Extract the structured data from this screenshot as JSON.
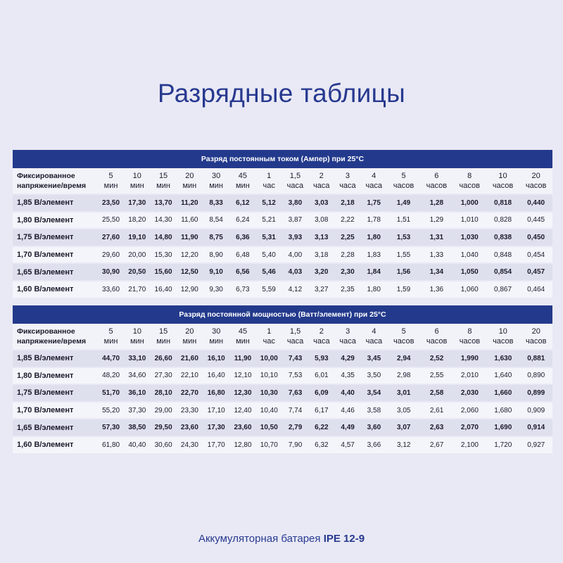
{
  "title": "Разрядные таблицы",
  "label_header": [
    "Фиксированное",
    "напряжение/время"
  ],
  "columns": [
    [
      "5",
      "мин"
    ],
    [
      "10",
      "мин"
    ],
    [
      "15",
      "мин"
    ],
    [
      "20",
      "мин"
    ],
    [
      "30",
      "мин"
    ],
    [
      "45",
      "мин"
    ],
    [
      "1",
      "час"
    ],
    [
      "1,5",
      "часа"
    ],
    [
      "2",
      "часа"
    ],
    [
      "3",
      "часа"
    ],
    [
      "4",
      "часа"
    ],
    [
      "5",
      "часов"
    ],
    [
      "6",
      "часов"
    ],
    [
      "8",
      "часов"
    ],
    [
      "10",
      "часов"
    ],
    [
      "20",
      "часов"
    ]
  ],
  "tables": [
    {
      "caption": "Разряд постоянным током (Ампер) при 25°C",
      "rows": [
        {
          "label": "1,85 В/элемент",
          "values": [
            "23,50",
            "17,30",
            "13,70",
            "11,20",
            "8,33",
            "6,12",
            "5,12",
            "3,80",
            "3,03",
            "2,18",
            "1,75",
            "1,49",
            "1,28",
            "1,000",
            "0,818",
            "0,440"
          ]
        },
        {
          "label": "1,80 В/элемент",
          "values": [
            "25,50",
            "18,20",
            "14,30",
            "11,60",
            "8,54",
            "6,24",
            "5,21",
            "3,87",
            "3,08",
            "2,22",
            "1,78",
            "1,51",
            "1,29",
            "1,010",
            "0,828",
            "0,445"
          ]
        },
        {
          "label": "1,75 В/элемент",
          "values": [
            "27,60",
            "19,10",
            "14,80",
            "11,90",
            "8,75",
            "6,36",
            "5,31",
            "3,93",
            "3,13",
            "2,25",
            "1,80",
            "1,53",
            "1,31",
            "1,030",
            "0,838",
            "0,450"
          ]
        },
        {
          "label": "1,70 В/элемент",
          "values": [
            "29,60",
            "20,00",
            "15,30",
            "12,20",
            "8,90",
            "6,48",
            "5,40",
            "4,00",
            "3,18",
            "2,28",
            "1,83",
            "1,55",
            "1,33",
            "1,040",
            "0,848",
            "0,454"
          ]
        },
        {
          "label": "1,65 В/элемент",
          "values": [
            "30,90",
            "20,50",
            "15,60",
            "12,50",
            "9,10",
            "6,56",
            "5,46",
            "4,03",
            "3,20",
            "2,30",
            "1,84",
            "1,56",
            "1,34",
            "1,050",
            "0,854",
            "0,457"
          ]
        },
        {
          "label": "1,60 В/элемент",
          "values": [
            "33,60",
            "21,70",
            "16,40",
            "12,90",
            "9,30",
            "6,73",
            "5,59",
            "4,12",
            "3,27",
            "2,35",
            "1,80",
            "1,59",
            "1,36",
            "1,060",
            "0,867",
            "0,464"
          ]
        }
      ]
    },
    {
      "caption": "Разряд постоянной мощностью (Ватт/элемент) при 25°C",
      "rows": [
        {
          "label": "1,85 В/элемент",
          "values": [
            "44,70",
            "33,10",
            "26,60",
            "21,60",
            "16,10",
            "11,90",
            "10,00",
            "7,43",
            "5,93",
            "4,29",
            "3,45",
            "2,94",
            "2,52",
            "1,990",
            "1,630",
            "0,881"
          ]
        },
        {
          "label": "1,80 В/элемент",
          "values": [
            "48,20",
            "34,60",
            "27,30",
            "22,10",
            "16,40",
            "12,10",
            "10,10",
            "7,53",
            "6,01",
            "4,35",
            "3,50",
            "2,98",
            "2,55",
            "2,010",
            "1,640",
            "0,890"
          ]
        },
        {
          "label": "1,75 В/элемент",
          "values": [
            "51,70",
            "36,10",
            "28,10",
            "22,70",
            "16,80",
            "12,30",
            "10,30",
            "7,63",
            "6,09",
            "4,40",
            "3,54",
            "3,01",
            "2,58",
            "2,030",
            "1,660",
            "0,899"
          ]
        },
        {
          "label": "1,70 В/элемент",
          "values": [
            "55,20",
            "37,30",
            "29,00",
            "23,30",
            "17,10",
            "12,40",
            "10,40",
            "7,74",
            "6,17",
            "4,46",
            "3,58",
            "3,05",
            "2,61",
            "2,060",
            "1,680",
            "0,909"
          ]
        },
        {
          "label": "1,65 В/элемент",
          "values": [
            "57,30",
            "38,50",
            "29,50",
            "23,60",
            "17,30",
            "23,60",
            "10,50",
            "2,79",
            "6,22",
            "4,49",
            "3,60",
            "3,07",
            "2,63",
            "2,070",
            "1,690",
            "0,914"
          ]
        },
        {
          "label": "1,60 В/элемент",
          "values": [
            "61,80",
            "40,40",
            "30,60",
            "24,30",
            "17,70",
            "12,80",
            "10,70",
            "7,90",
            "6,32",
            "4,57",
            "3,66",
            "3,12",
            "2,67",
            "2,100",
            "1,720",
            "0,927"
          ]
        }
      ]
    }
  ],
  "footer": {
    "text": "Аккумуляторная батарея ",
    "model": "IPE 12-9"
  },
  "colors": {
    "accent": "#233a8c",
    "page_bg": "#e9e9f5"
  }
}
